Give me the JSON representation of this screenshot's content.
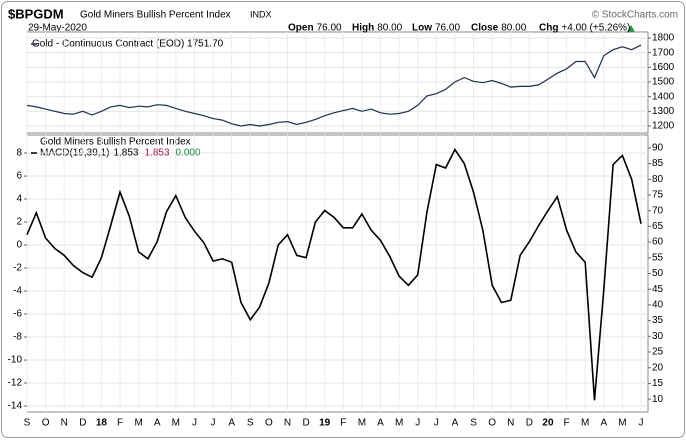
{
  "header": {
    "symbol": "$BPGDM",
    "name": "Gold Miners Bullish Percent Index",
    "exchange": "INDX",
    "source": "© StockCharts.com",
    "date": "29-May-2020",
    "quote": [
      {
        "label": "Open",
        "value": "76.00"
      },
      {
        "label": "High",
        "value": "80.00"
      },
      {
        "label": "Low",
        "value": "76.00"
      },
      {
        "label": "Close",
        "value": "80.00"
      },
      {
        "label": "Chg",
        "value": "+4.00 (+5.26%)"
      }
    ]
  },
  "chart_data": [
    {
      "type": "line",
      "grid": true,
      "series": [
        {
          "name": "Gold - Continuous Contract (EOD) 1751.70",
          "color": "#1f2f52",
          "values": [
            1340,
            1330,
            1315,
            1300,
            1285,
            1280,
            1300,
            1275,
            1300,
            1330,
            1340,
            1325,
            1335,
            1330,
            1345,
            1340,
            1320,
            1300,
            1285,
            1270,
            1250,
            1240,
            1215,
            1200,
            1210,
            1200,
            1210,
            1225,
            1230,
            1210,
            1225,
            1245,
            1270,
            1290,
            1305,
            1320,
            1300,
            1315,
            1290,
            1280,
            1285,
            1300,
            1340,
            1405,
            1420,
            1450,
            1500,
            1530,
            1505,
            1495,
            1510,
            1490,
            1465,
            1470,
            1470,
            1480,
            1520,
            1560,
            1590,
            1640,
            1640,
            1530,
            1680,
            1720,
            1740,
            1720,
            1751.7
          ]
        }
      ],
      "ylim": [
        1152,
        1841
      ],
      "yticks": [
        1200,
        1300,
        1400,
        1500,
        1600,
        1700,
        1800
      ]
    },
    {
      "type": "line",
      "grid": true,
      "title": "Gold Miners Bullish Percent Index",
      "categories": [
        "S",
        null,
        "O",
        null,
        "N",
        null,
        "D",
        null,
        "18",
        null,
        "F",
        null,
        "M",
        null,
        "A",
        null,
        "M",
        null,
        "J",
        null,
        "J",
        null,
        "A",
        null,
        "S",
        null,
        "O",
        null,
        "N",
        null,
        "D",
        null,
        "19",
        null,
        "F",
        null,
        "M",
        null,
        "A",
        null,
        "M",
        null,
        "J",
        null,
        "J",
        null,
        "A",
        null,
        "S",
        null,
        "O",
        null,
        "N",
        null,
        "D",
        null,
        "20",
        null,
        "F",
        null,
        "M",
        null,
        "A",
        null,
        "M",
        null,
        "J"
      ],
      "series": [
        {
          "name": "MACD(19,39,1)",
          "color": "#000000",
          "value_labels": [
            "1.853",
            "1.853",
            "0.000"
          ],
          "label_colors": [
            "#000000",
            "#b0183c",
            "#1a8a3a"
          ],
          "values": [
            0.9,
            2.8,
            0.6,
            -0.3,
            -0.9,
            -1.8,
            -2.4,
            -2.8,
            -1.1,
            1.7,
            4.6,
            2.5,
            -0.6,
            -1.2,
            0.3,
            2.9,
            4.3,
            2.4,
            1.2,
            0.2,
            -1.4,
            -1.2,
            -1.5,
            -5.0,
            -6.5,
            -5.4,
            -3.3,
            0,
            0.9,
            -0.9,
            -1.1,
            2.0,
            3.0,
            2.4,
            1.5,
            1.5,
            2.7,
            1.3,
            0.4,
            -1.0,
            -2.7,
            -3.5,
            -2.6,
            2.9,
            7.0,
            6.7,
            8.3,
            7.1,
            4.6,
            1.3,
            -3.5,
            -5.0,
            -4.8,
            -0.9,
            0.3,
            1.7,
            3.0,
            4.2,
            1.3,
            -0.6,
            -1.5,
            -13.5,
            -3.9,
            7.0,
            7.8,
            5.7,
            1.853
          ]
        }
      ],
      "ylim": [
        -14.52,
        9.57
      ],
      "yticks": [
        -14,
        -12,
        -10,
        -8,
        -6,
        -4,
        -2,
        0,
        2,
        4,
        6,
        8
      ],
      "y2lim": [
        5.9,
        94.1
      ],
      "y2ticks": [
        10,
        15,
        20,
        25,
        30,
        35,
        40,
        45,
        50,
        55,
        60,
        65,
        70,
        75,
        80,
        85,
        90
      ]
    }
  ]
}
